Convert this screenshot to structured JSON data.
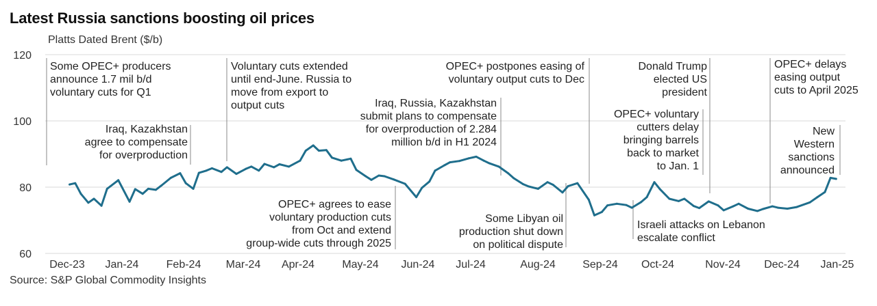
{
  "title": "Latest Russia sanctions boosting oil prices",
  "source": "Source: S&P Global Commodity Insights",
  "colors": {
    "line": "#1f6e8c",
    "grid": "#d9d9d9",
    "annotation_rule": "#8a8a8a"
  },
  "chart_data": {
    "type": "line",
    "title": "Latest Russia sanctions boosting oil prices",
    "ylabel": "Platts Dated Brent ($/b)",
    "xlabel": "",
    "ylim": [
      60,
      120
    ],
    "yticks": [
      60,
      80,
      100,
      120
    ],
    "grid": true,
    "x_tick_labels": [
      "Dec-23",
      "Jan-24",
      "Feb-24",
      "Mar-24",
      "Apr-24",
      "May-24",
      "Jun-24",
      "Jul-24",
      "Aug-24",
      "Sep-24",
      "Oct-24",
      "Nov-24",
      "Dec-24",
      "Jan-25"
    ],
    "series": [
      {
        "x": [
          "2023-12-01",
          "2023-12-04",
          "2023-12-07",
          "2023-12-11",
          "2023-12-14",
          "2023-12-18",
          "2023-12-21",
          "2023-12-27",
          "2024-01-02",
          "2024-01-05",
          "2024-01-09",
          "2024-01-12",
          "2024-01-16",
          "2024-01-19",
          "2024-01-24",
          "2024-01-29",
          "2024-02-01",
          "2024-02-05",
          "2024-02-08",
          "2024-02-12",
          "2024-02-15",
          "2024-02-20",
          "2024-02-23",
          "2024-02-28",
          "2024-03-04",
          "2024-03-07",
          "2024-03-11",
          "2024-03-14",
          "2024-03-19",
          "2024-03-22",
          "2024-03-27",
          "2024-04-02",
          "2024-04-05",
          "2024-04-09",
          "2024-04-12",
          "2024-04-16",
          "2024-04-19",
          "2024-04-24",
          "2024-04-29",
          "2024-05-02",
          "2024-05-07",
          "2024-05-10",
          "2024-05-14",
          "2024-05-17",
          "2024-05-22",
          "2024-05-28",
          "2024-06-03",
          "2024-06-06",
          "2024-06-10",
          "2024-06-13",
          "2024-06-18",
          "2024-06-21",
          "2024-06-26",
          "2024-07-01",
          "2024-07-05",
          "2024-07-09",
          "2024-07-12",
          "2024-07-17",
          "2024-07-22",
          "2024-07-25",
          "2024-07-30",
          "2024-08-02",
          "2024-08-07",
          "2024-08-12",
          "2024-08-15",
          "2024-08-20",
          "2024-08-23",
          "2024-08-28",
          "2024-09-03",
          "2024-09-06",
          "2024-09-10",
          "2024-09-13",
          "2024-09-18",
          "2024-09-23",
          "2024-09-26",
          "2024-10-01",
          "2024-10-04",
          "2024-10-08",
          "2024-10-11",
          "2024-10-16",
          "2024-10-21",
          "2024-10-24",
          "2024-10-29",
          "2024-11-01",
          "2024-11-06",
          "2024-11-11",
          "2024-11-14",
          "2024-11-19",
          "2024-11-22",
          "2024-11-27",
          "2024-12-02",
          "2024-12-05",
          "2024-12-10",
          "2024-12-13",
          "2024-12-18",
          "2024-12-23",
          "2024-12-30",
          "2025-01-03",
          "2025-01-07",
          "2025-01-10",
          "2025-01-13"
        ],
        "y": [
          80.8,
          81.2,
          78.0,
          75.3,
          76.5,
          74.4,
          79.5,
          82.1,
          75.6,
          79.4,
          78.0,
          79.5,
          79.2,
          80.5,
          82.8,
          84.2,
          81.2,
          79.5,
          84.3,
          85.0,
          85.7,
          84.6,
          86.0,
          84.0,
          85.5,
          86.2,
          85.0,
          87.0,
          86.0,
          86.9,
          86.2,
          88.0,
          91.0,
          92.6,
          91.0,
          91.2,
          88.9,
          88.0,
          88.6,
          85.2,
          83.3,
          82.2,
          83.5,
          83.3,
          82.3,
          81.0,
          77.0,
          79.8,
          81.7,
          85.0,
          86.6,
          87.5,
          87.9,
          88.7,
          89.2,
          88.0,
          87.2,
          86.2,
          84.2,
          82.7,
          80.9,
          80.2,
          79.5,
          81.5,
          80.7,
          78.4,
          80.3,
          81.2,
          76.2,
          71.5,
          72.5,
          74.5,
          75.0,
          74.6,
          73.8,
          75.5,
          77.0,
          81.5,
          79.4,
          76.5,
          75.8,
          76.5,
          74.3,
          73.7,
          75.7,
          74.5,
          73.0,
          74.2,
          75.0,
          73.5,
          72.8,
          73.4,
          74.2,
          73.8,
          73.5,
          74.0,
          75.4,
          77.0,
          78.5,
          82.8,
          82.5
        ]
      }
    ],
    "annotations": [
      {
        "text": [
          "Some OPEC+ producers",
          "announce 1.7 mil b/d",
          "voluntary cuts for Q1"
        ]
      },
      {
        "text": [
          "Iraq, Kazakhstan",
          "agree to compensate",
          "for overproduction"
        ]
      },
      {
        "text": [
          "Voluntary cuts extended",
          "until end-June. Russia to",
          "move from export to",
          "output cuts"
        ]
      },
      {
        "text": [
          "OPEC+ agrees to ease",
          "voluntary production cuts",
          "from Oct and extend",
          "group-wide cuts through 2025"
        ]
      },
      {
        "text": [
          "Iraq, Russia, Kazakhstan",
          "submit plans to compensate",
          "for overproduction of 2.284",
          "million b/d in H1 2024"
        ]
      },
      {
        "text": [
          "OPEC+ postpones easing of",
          "voluntary output cuts to Dec"
        ]
      },
      {
        "text": [
          "Some Libyan oil",
          "production shut down",
          "on political dispute"
        ]
      },
      {
        "text": [
          "Donald Trump",
          "elected US",
          "president"
        ]
      },
      {
        "text": [
          "OPEC+ voluntary",
          "cutters delay",
          "bringing barrels",
          "back to market",
          "to Jan. 1"
        ]
      },
      {
        "text": [
          "Israeli attacks on Lebanon",
          "escalate conflict"
        ]
      },
      {
        "text": [
          "OPEC+ delays",
          "easing output",
          "cuts to April 2025"
        ]
      },
      {
        "text": [
          "New",
          "Western",
          "sanctions",
          "announced"
        ]
      }
    ]
  }
}
